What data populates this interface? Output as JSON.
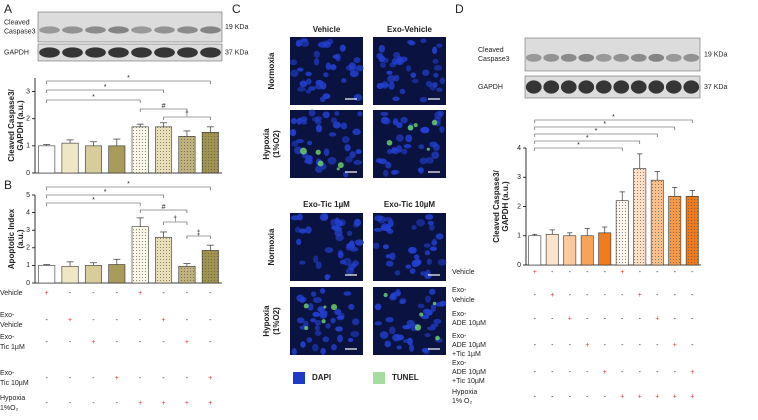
{
  "panel_labels": [
    "A",
    "B",
    "C",
    "D"
  ],
  "blots": [
    {
      "bands": [
        {
          "label": [
            "Cleaved",
            "Caspase3"
          ],
          "size": "19 KDa"
        },
        {
          "label": [
            "GAPDH"
          ],
          "size": "37 KDa"
        }
      ]
    },
    {
      "bands": [
        {
          "label": [
            "Cleaved",
            "Caspase3"
          ],
          "size": "19 KDa"
        },
        {
          "label": [
            "GAPDH"
          ],
          "size": "37 KDa"
        }
      ]
    }
  ],
  "chart_data": [
    {
      "type": "bar",
      "ylabel": [
        "Cleaved Caspase3/",
        "GAPDH (a.u.)"
      ],
      "categories": [
        null,
        null,
        null,
        null,
        null,
        null,
        null,
        null
      ],
      "values": [
        1,
        1.1,
        1.0,
        1.0,
        1.7,
        1.7,
        1.35,
        1.5
      ],
      "errors": [
        0.05,
        0.12,
        0.15,
        0.25,
        0.1,
        0.15,
        0.2,
        0.2
      ],
      "colors": [
        "#ffffff",
        "#efe6c4",
        "#d6cc9c",
        "#a89c5c",
        "#fbf7e6",
        "#e9dfb8",
        "#bfb27c",
        "#a0924f"
      ],
      "dotted": [
        false,
        false,
        false,
        false,
        true,
        true,
        true,
        true
      ],
      "ylim": [
        0,
        3.5
      ],
      "yticks": [
        0,
        1,
        2,
        3
      ],
      "annotations": [
        "*",
        "*",
        "*",
        "#",
        "†"
      ]
    },
    {
      "type": "bar",
      "ylabel": [
        "Apoptotic Index",
        "(a.u.)"
      ],
      "categories": [
        null,
        null,
        null,
        null,
        null,
        null,
        null,
        null
      ],
      "values": [
        1,
        0.95,
        1.0,
        1.05,
        3.2,
        2.6,
        0.95,
        1.85
      ],
      "errors": [
        0.05,
        0.25,
        0.15,
        0.3,
        0.5,
        0.3,
        0.15,
        0.3
      ],
      "colors": [
        "#ffffff",
        "#efe6c4",
        "#d6cc9c",
        "#a89c5c",
        "#fbf7e6",
        "#e9dfb8",
        "#bfb27c",
        "#a0924f"
      ],
      "dotted": [
        false,
        false,
        false,
        false,
        true,
        true,
        true,
        true
      ],
      "ylim": [
        0,
        5
      ],
      "yticks": [
        0,
        1,
        2,
        3,
        4,
        5
      ],
      "annotations": [
        "*",
        "*",
        "*",
        "#",
        "†",
        "‡"
      ]
    },
    {
      "type": "bar",
      "ylabel": [
        "Cleaved Caspase3/",
        "GAPDH (a.u.)"
      ],
      "categories": [
        null,
        null,
        null,
        null,
        null,
        null,
        null,
        null,
        null,
        null
      ],
      "values": [
        1,
        1.05,
        1.0,
        1.0,
        1.1,
        2.2,
        3.3,
        2.9,
        2.35,
        2.35
      ],
      "errors": [
        0.05,
        0.15,
        0.1,
        0.25,
        0.2,
        0.3,
        0.5,
        0.3,
        0.3,
        0.2
      ],
      "colors": [
        "#ffffff",
        "#fde3cc",
        "#fcc99c",
        "#f8a458",
        "#f07c1e",
        "#fff6ee",
        "#fde0c6",
        "#fbc08c",
        "#f79a48",
        "#ef7a1c"
      ],
      "dotted": [
        false,
        false,
        false,
        false,
        false,
        true,
        true,
        true,
        true,
        true
      ],
      "ylim": [
        0,
        4
      ],
      "yticks": [
        0,
        1,
        2,
        3,
        4
      ],
      "annotations": [
        "*",
        "*",
        "*",
        "*",
        "*"
      ]
    }
  ],
  "treatments": [
    {
      "rows": [
        {
          "label": [
            "Vehicle"
          ],
          "marks": [
            "+",
            "-",
            "-",
            "-",
            "+",
            "-",
            "-",
            "-"
          ]
        },
        {
          "label": [
            "Exo-",
            "Vehicle"
          ],
          "marks": [
            "-",
            "+",
            "-",
            "-",
            "-",
            "+",
            "-",
            "-"
          ]
        },
        {
          "label": [
            "Exo-",
            "Tic 1µM"
          ],
          "marks": [
            "-",
            "-",
            "+",
            "-",
            "-",
            "-",
            "+",
            "-"
          ]
        },
        {
          "label": [
            "Exo-",
            "Tic 10µM"
          ],
          "marks": [
            "-",
            "-",
            "-",
            "+",
            "-",
            "-",
            "-",
            "+"
          ]
        },
        {
          "label": [
            "Hypoxia",
            "1%O₂"
          ],
          "marks": [
            "-",
            "-",
            "-",
            "-",
            "+",
            "+",
            "+",
            "+"
          ]
        }
      ]
    },
    {
      "rows": [
        {
          "label": [
            "Vehicle"
          ],
          "marks": [
            "+",
            "-",
            "-",
            "-",
            "-",
            "+",
            "-",
            "-",
            "-",
            "-"
          ]
        },
        {
          "label": [
            "Exo-",
            "Vehicle"
          ],
          "marks": [
            "-",
            "+",
            "-",
            "-",
            "-",
            "-",
            "+",
            "-",
            "-",
            "-"
          ]
        },
        {
          "label": [
            "Exo-",
            "ADE 10µM"
          ],
          "marks": [
            "-",
            "-",
            "+",
            "-",
            "-",
            "-",
            "-",
            "+",
            "-",
            "-"
          ]
        },
        {
          "label": [
            "Exo-",
            "ADE 10µM",
            "+Tic 1µM"
          ],
          "marks": [
            "-",
            "-",
            "-",
            "+",
            "-",
            "-",
            "-",
            "-",
            "+",
            "-"
          ]
        },
        {
          "label": [
            "Exo-",
            "ADE 10µM",
            "+Tic 10µM"
          ],
          "marks": [
            "-",
            "-",
            "-",
            "-",
            "+",
            "-",
            "-",
            "-",
            "-",
            "+"
          ]
        },
        {
          "label": [
            "Hypoxia",
            "1% O₂"
          ],
          "marks": [
            "-",
            "-",
            "-",
            "-",
            "-",
            "+",
            "+",
            "+",
            "+",
            "+"
          ]
        }
      ]
    }
  ],
  "microscopy": {
    "headers": [
      [
        "Vehicle",
        "Exo-Vehicle"
      ],
      [
        "Exo-Tic 1µM",
        "Exo-Tic 10µM"
      ]
    ],
    "rows": [
      [
        "Normoxia"
      ],
      [
        "Hypoxia",
        "(1%O2)"
      ]
    ],
    "legend": [
      {
        "label": "DAPI",
        "color": "#1d3bc4"
      },
      {
        "label": "TUNEL",
        "color": "#a6dca0"
      }
    ]
  }
}
